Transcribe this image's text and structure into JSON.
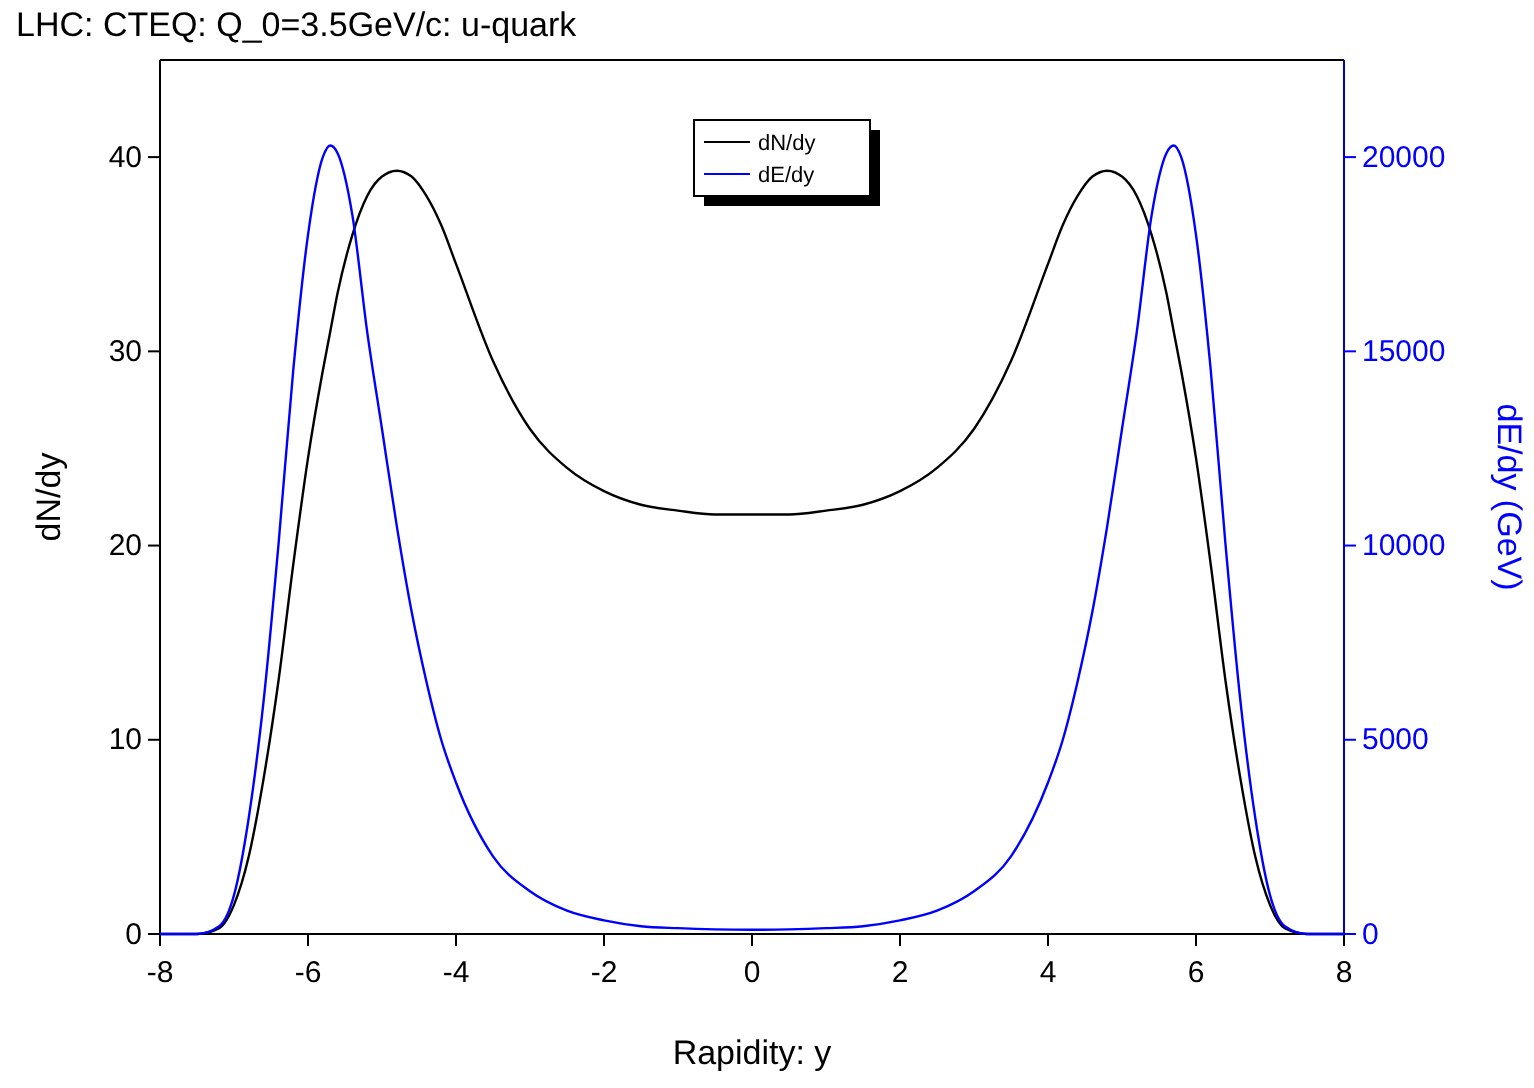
{
  "chart_data": {
    "type": "line",
    "title": "LHC: CTEQ: Q_0=3.5GeV/c: u-quark",
    "xlabel": "Rapidity: y",
    "ylabel": "dN/dy",
    "y2label": "dE/dy (GeV)",
    "x": [
      -8,
      -7.5,
      -7.2,
      -7,
      -6.8,
      -6.6,
      -6.4,
      -6.2,
      -6,
      -5.8,
      -5.7,
      -5.6,
      -5.4,
      -5.2,
      -5,
      -4.8,
      -4.6,
      -4.4,
      -4.2,
      -4,
      -3.5,
      -3,
      -2.5,
      -2,
      -1.5,
      -1,
      -0.5,
      0,
      0.5,
      1,
      1.5,
      2,
      2.5,
      3,
      3.5,
      4,
      4.2,
      4.4,
      4.6,
      4.8,
      5,
      5.2,
      5.4,
      5.6,
      5.7,
      5.8,
      6,
      6.2,
      6.4,
      6.6,
      6.8,
      7,
      7.2,
      7.5,
      8
    ],
    "series": [
      {
        "name": "dN/dy",
        "color": "#000000",
        "values": [
          0,
          0,
          0.3,
          1.5,
          4,
          8,
          13,
          19,
          24.5,
          29,
          31,
          33,
          36,
          38,
          39,
          39.3,
          39,
          38,
          36.5,
          34.5,
          29.5,
          26,
          24,
          22.8,
          22.1,
          21.8,
          21.6,
          21.6,
          21.6,
          21.8,
          22.1,
          22.8,
          24,
          26,
          29.5,
          34.5,
          36.5,
          38,
          39,
          39.3,
          39,
          38,
          36,
          33,
          31,
          29,
          24.5,
          19,
          13,
          8,
          4,
          1.5,
          0.3,
          0,
          0
        ]
      },
      {
        "name": "dE/dy",
        "color": "#0000ff",
        "axis": "y2",
        "values": [
          0,
          0,
          200,
          1000,
          3000,
          6000,
          10000,
          14500,
          18000,
          20000,
          20300,
          20100,
          18500,
          15500,
          13000,
          10500,
          8300,
          6500,
          5000,
          3900,
          2000,
          1100,
          600,
          350,
          200,
          150,
          120,
          110,
          120,
          150,
          200,
          350,
          600,
          1100,
          2000,
          3900,
          5000,
          6500,
          8300,
          10500,
          13000,
          15500,
          18500,
          20100,
          20300,
          20000,
          18000,
          14500,
          10000,
          6000,
          3000,
          1000,
          200,
          0,
          0
        ]
      }
    ],
    "xlim": [
      -8,
      8
    ],
    "xticks": [
      -8,
      -6,
      -4,
      -2,
      0,
      2,
      4,
      6,
      8
    ],
    "ylim": [
      0,
      45
    ],
    "yticks": [
      0,
      10,
      20,
      30,
      40
    ],
    "y2lim": [
      0,
      22500
    ],
    "y2ticks": [
      0,
      5000,
      10000,
      15000,
      20000
    ],
    "legend": "top",
    "grid": false
  }
}
